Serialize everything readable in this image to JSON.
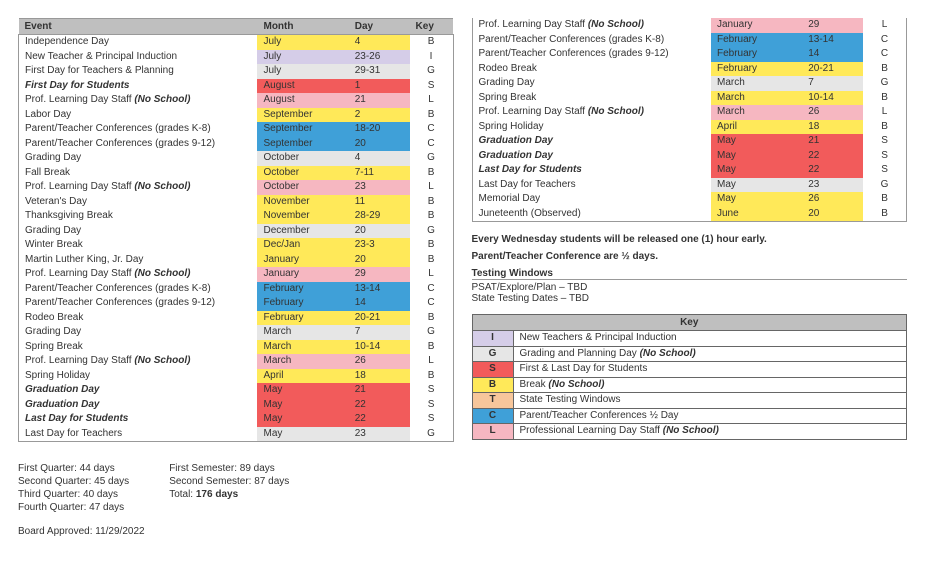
{
  "colors": {
    "I": "#d5cde8",
    "G": "#e6e6e6",
    "S": "#f25b5b",
    "B": "#ffe959",
    "T": "#f7c69b",
    "C": "#3fa0d8",
    "L": "#f6b7c1",
    "header": "#bfbfbf"
  },
  "headers": {
    "event": "Event",
    "month": "Month",
    "day": "Day",
    "key": "Key"
  },
  "events": [
    {
      "event": "Independence Day",
      "month": "July",
      "day": "4",
      "key": "B"
    },
    {
      "event": "New Teacher & Principal Induction",
      "month": "July",
      "day": "23-26",
      "key": "I"
    },
    {
      "event": "First Day for Teachers & Planning",
      "month": "July",
      "day": "29-31",
      "key": "G"
    },
    {
      "event": "First Day for Students",
      "style": "bolditalic",
      "month": "August",
      "day": "1",
      "key": "S"
    },
    {
      "event": "Prof. Learning Day Staff",
      "suffix": "(No School)",
      "month": "August",
      "day": "21",
      "key": "L"
    },
    {
      "event": "Labor Day",
      "month": "September",
      "day": "2",
      "key": "B"
    },
    {
      "event": "Parent/Teacher Conferences (grades K-8)",
      "month": "September",
      "day": "18-20",
      "key": "C"
    },
    {
      "event": "Parent/Teacher Conferences (grades 9-12)",
      "month": "September",
      "day": "20",
      "key": "C"
    },
    {
      "event": "Grading Day",
      "month": "October",
      "day": "4",
      "key": "G"
    },
    {
      "event": "Fall Break",
      "month": "October",
      "day": "7-11",
      "key": "B"
    },
    {
      "event": "Prof. Learning Day Staff",
      "suffix": "(No School)",
      "month": "October",
      "day": "23",
      "key": "L"
    },
    {
      "event": "Veteran's Day",
      "month": "November",
      "day": "11",
      "key": "B"
    },
    {
      "event": "Thanksgiving Break",
      "month": "November",
      "day": "28-29",
      "key": "B"
    },
    {
      "event": "Grading Day",
      "month": "December",
      "day": "20",
      "key": "G"
    },
    {
      "event": "Winter Break",
      "month": "Dec/Jan",
      "day": "23-3",
      "key": "B"
    },
    {
      "event": "Martin Luther King, Jr. Day",
      "month": "January",
      "day": "20",
      "key": "B"
    },
    {
      "event": "Prof. Learning Day Staff",
      "suffix": "(No School)",
      "month": "January",
      "day": "29",
      "key": "L"
    },
    {
      "event": "Parent/Teacher Conferences (grades K-8)",
      "month": "February",
      "day": "13-14",
      "key": "C"
    },
    {
      "event": "Parent/Teacher Conferences (grades 9-12)",
      "month": "February",
      "day": "14",
      "key": "C"
    },
    {
      "event": "Rodeo Break",
      "month": "February",
      "day": "20-21",
      "key": "B"
    },
    {
      "event": "Grading Day",
      "month": "March",
      "day": "7",
      "key": "G"
    },
    {
      "event": "Spring Break",
      "month": "March",
      "day": "10-14",
      "key": "B"
    },
    {
      "event": "Prof. Learning Day Staff",
      "suffix": "(No School)",
      "month": "March",
      "day": "26",
      "key": "L"
    },
    {
      "event": "Spring Holiday",
      "month": "April",
      "day": "18",
      "key": "B"
    },
    {
      "event": "Graduation Day",
      "style": "bolditalic",
      "month": "May",
      "day": "21",
      "key": "S"
    },
    {
      "event": "Graduation Day",
      "style": "bolditalic",
      "month": "May",
      "day": "22",
      "key": "S"
    },
    {
      "event": "Last Day for Students",
      "style": "bolditalic",
      "month": "May",
      "day": "22",
      "key": "S"
    },
    {
      "event": "Last Day for Teachers",
      "month": "May",
      "day": "23",
      "key": "G"
    }
  ],
  "eventsRight": [
    {
      "event": "Prof. Learning Day Staff",
      "suffix": "(No School)",
      "month": "January",
      "day": "29",
      "key": "L"
    },
    {
      "event": "Parent/Teacher Conferences (grades K-8)",
      "month": "February",
      "day": "13-14",
      "key": "C"
    },
    {
      "event": "Parent/Teacher Conferences (grades 9-12)",
      "month": "February",
      "day": "14",
      "key": "C"
    },
    {
      "event": "Rodeo Break",
      "month": "February",
      "day": "20-21",
      "key": "B"
    },
    {
      "event": "Grading Day",
      "month": "March",
      "day": "7",
      "key": "G"
    },
    {
      "event": "Spring Break",
      "month": "March",
      "day": "10-14",
      "key": "B"
    },
    {
      "event": "Prof. Learning Day Staff",
      "suffix": "(No School)",
      "month": "March",
      "day": "26",
      "key": "L"
    },
    {
      "event": "Spring Holiday",
      "month": "April",
      "day": "18",
      "key": "B"
    },
    {
      "event": "Graduation Day",
      "style": "bolditalic",
      "month": "May",
      "day": "21",
      "key": "S"
    },
    {
      "event": "Graduation Day",
      "style": "bolditalic",
      "month": "May",
      "day": "22",
      "key": "S"
    },
    {
      "event": "Last Day for Students",
      "style": "bolditalic",
      "month": "May",
      "day": "22",
      "key": "S"
    },
    {
      "event": "Last Day for Teachers",
      "month": "May",
      "day": "23",
      "key": "G"
    },
    {
      "event": "Memorial Day",
      "month": "May",
      "day": "26",
      "key": "B"
    },
    {
      "event": "Juneteenth (Observed)",
      "month": "June",
      "day": "20",
      "key": "B"
    }
  ],
  "notes": {
    "line1": "Every Wednesday students will be released one (1) hour early.",
    "line2": "Parent/Teacher Conference are ½ days.",
    "testingHeader": "Testing Windows",
    "testing1": "PSAT/Explore/Plan – TBD",
    "testing2": "State Testing Dates – TBD"
  },
  "keyTable": {
    "title": "Key",
    "rows": [
      {
        "code": "I",
        "desc": "New Teachers & Principal Induction"
      },
      {
        "code": "G",
        "desc": "Grading and Planning Day",
        "suffix": "(No School)"
      },
      {
        "code": "S",
        "desc": "First & Last Day for Students"
      },
      {
        "code": "B",
        "desc": "Break",
        "suffix": "(No School)"
      },
      {
        "code": "T",
        "desc": "State Testing Windows"
      },
      {
        "code": "C",
        "desc": "Parent/Teacher Conferences ½ Day"
      },
      {
        "code": "L",
        "desc": "Professional Learning Day Staff",
        "suffix": "(No School)"
      }
    ]
  },
  "footer": {
    "q1": "First Quarter: 44 days",
    "q2": "Second Quarter: 45 days",
    "q3": "Third Quarter: 40 days",
    "q4": "Fourth Quarter: 47 days",
    "s1": "First Semester: 89 days",
    "s2": "Second Semester: 87 days",
    "totalLabel": "Total: ",
    "totalValue": "176 days",
    "approved": "Board Approved: 11/29/2022"
  }
}
